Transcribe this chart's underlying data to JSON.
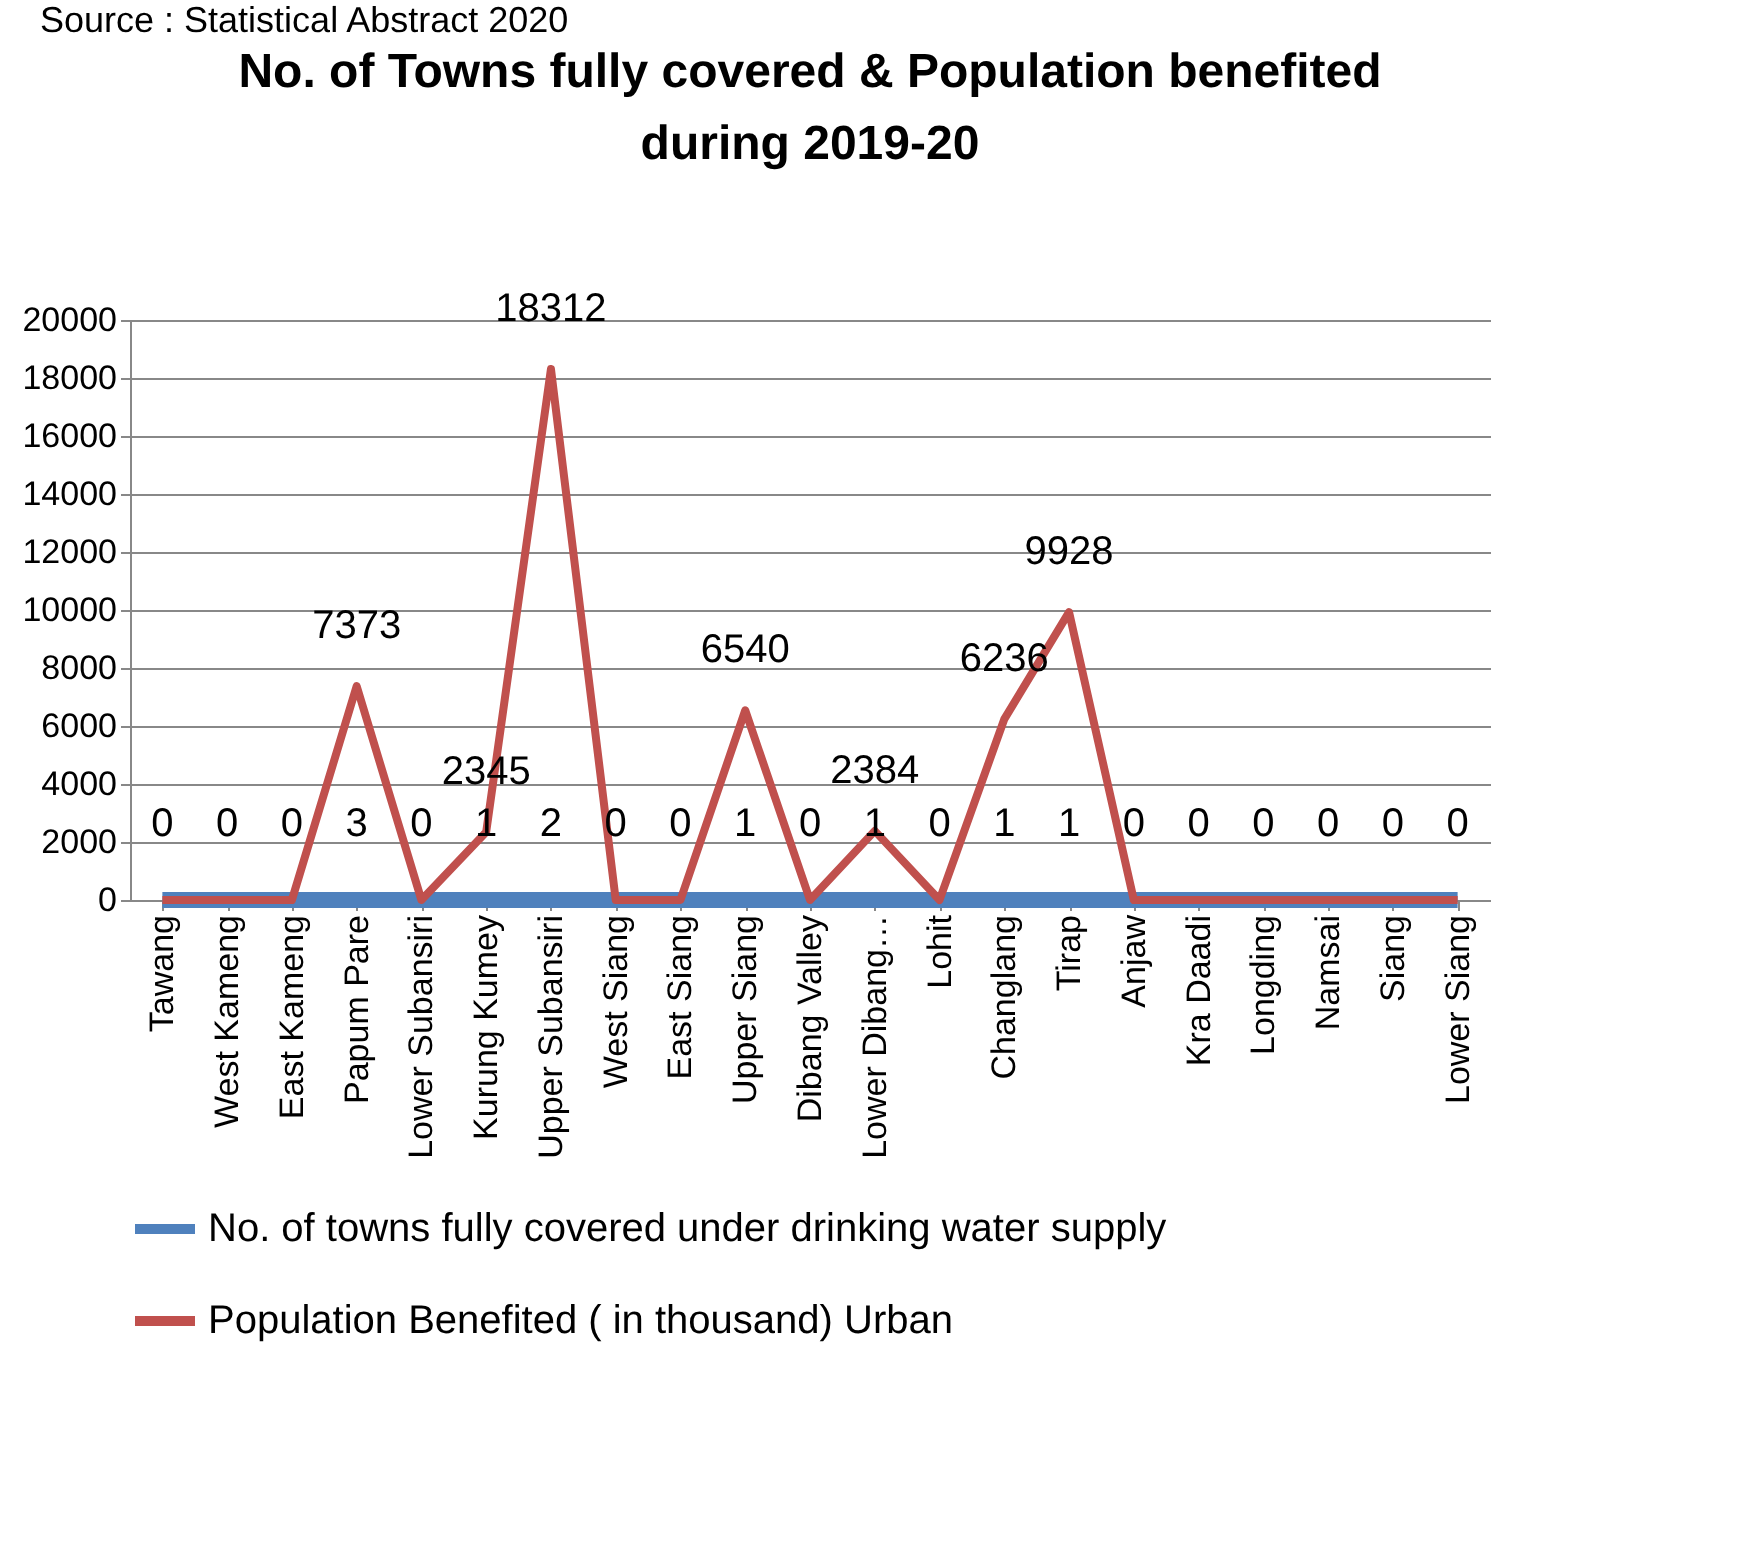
{
  "chart_data": {
    "type": "line",
    "title": "No. of Towns fully covered & Population benefited during 2019-20",
    "annotations": [
      "Source : Statistical Abstract 2020"
    ],
    "categories": [
      "Tawang",
      "West Kameng",
      "East Kameng",
      "Papum Pare",
      "Lower Subansiri",
      "Kurung Kumey",
      "Upper Subansiri",
      "West Siang",
      "East Siang",
      "Upper Siang",
      "Dibang Valley",
      "Lower Dibang…",
      "Lohit",
      "Changlang",
      "Tirap",
      "Anjaw",
      "Kra Daadi",
      "Longding",
      "Namsai",
      "Siang",
      "Lower Siang"
    ],
    "series": [
      {
        "name": "No. of towns fully covered under drinking  water supply",
        "color": "#4f81bd",
        "values": [
          0,
          0,
          0,
          3,
          0,
          1,
          2,
          0,
          0,
          1,
          0,
          1,
          0,
          1,
          1,
          0,
          0,
          0,
          0,
          0,
          0
        ],
        "value_labels": [
          "0",
          "0",
          "0",
          "3",
          "0",
          "1",
          "2",
          "0",
          "0",
          "1",
          "0",
          "1",
          "0",
          "1",
          "1",
          "0",
          "0",
          "0",
          "0",
          "0",
          "0"
        ]
      },
      {
        "name": "Population Benefited             ( in thousand)  Urban",
        "color": "#c0504d",
        "values": [
          0,
          0,
          0,
          7373,
          0,
          2345,
          18312,
          0,
          0,
          6540,
          0,
          2384,
          0,
          6236,
          9928,
          0,
          0,
          0,
          0,
          0,
          0
        ],
        "value_labels": [
          null,
          null,
          null,
          "7373",
          null,
          "2345",
          "18312",
          null,
          null,
          "6540",
          null,
          "2384",
          null,
          "6236",
          "9928",
          null,
          null,
          null,
          null,
          null,
          null
        ]
      }
    ],
    "ylim": [
      0,
      20000
    ],
    "yticks": [
      0,
      2000,
      4000,
      6000,
      8000,
      10000,
      12000,
      14000,
      16000,
      18000,
      20000
    ],
    "grid": "y",
    "legend": "bottom",
    "marker": "none",
    "line_style": "solid"
  }
}
